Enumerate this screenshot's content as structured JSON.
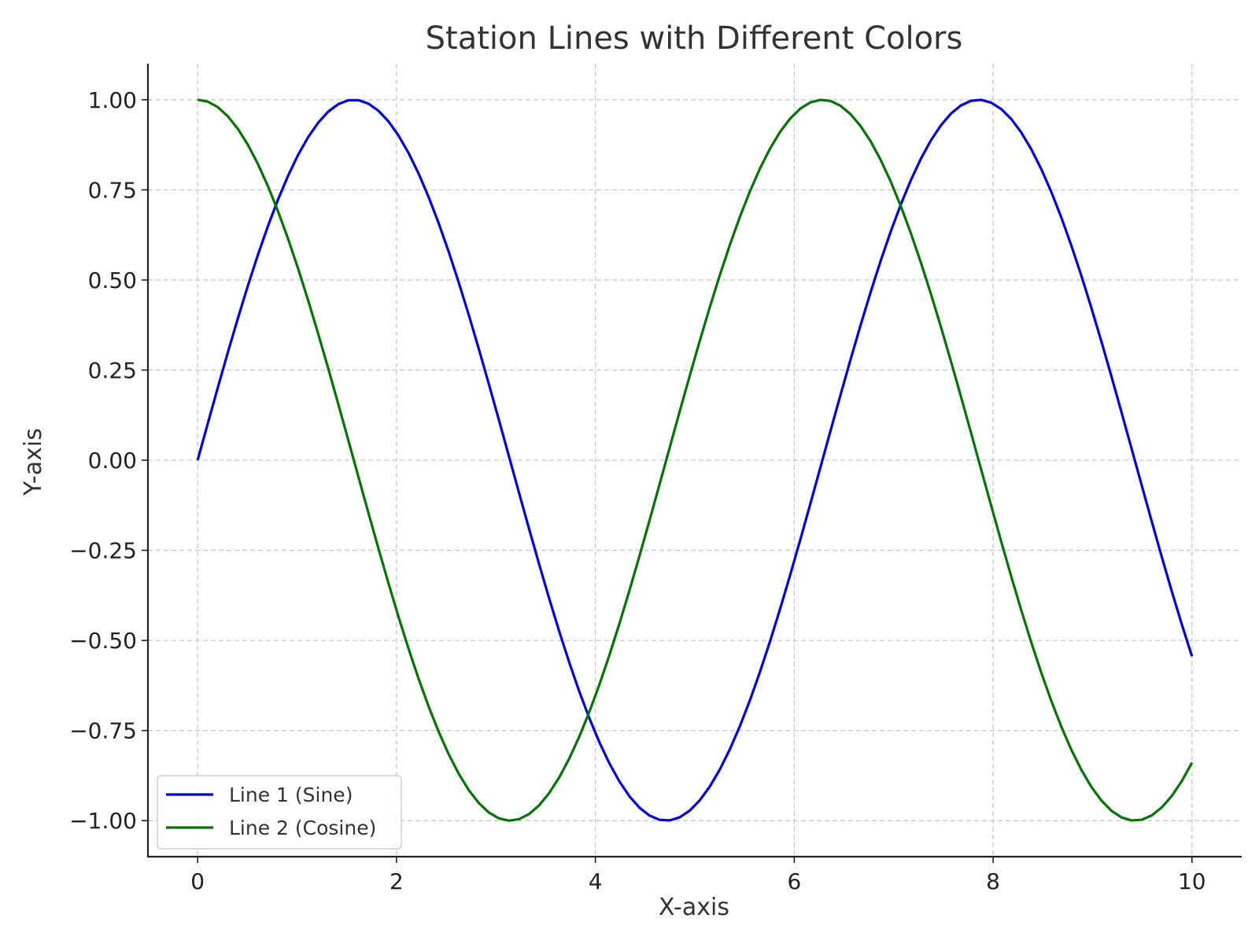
{
  "chart_data": {
    "type": "line",
    "title": "Station Lines with Different Colors",
    "xlabel": "X-axis",
    "ylabel": "Y-axis",
    "xlim": [
      -0.5,
      10.5
    ],
    "ylim": [
      -1.1,
      1.1
    ],
    "xticks": [
      0,
      2,
      4,
      6,
      8,
      10
    ],
    "xtick_labels": [
      "0",
      "2",
      "4",
      "6",
      "8",
      "10"
    ],
    "yticks": [
      1.0,
      0.75,
      0.5,
      0.25,
      0.0,
      -0.25,
      -0.5,
      -0.75,
      -1.0
    ],
    "ytick_labels": [
      "1.00",
      "0.75",
      "0.50",
      "0.25",
      "0.00",
      "−0.25",
      "−0.50",
      "−0.75",
      "−1.00"
    ],
    "grid": true,
    "legend_position": "lower-left",
    "x_range": [
      0,
      10
    ],
    "series": [
      {
        "name": "Line 1 (Sine)",
        "color": "#0000ee",
        "function": "sin(x)",
        "x": [
          0,
          1,
          2,
          3,
          4,
          5,
          6,
          7,
          8,
          9,
          10
        ],
        "y": [
          0.0,
          0.84,
          0.91,
          0.14,
          -0.76,
          -0.96,
          -0.28,
          0.66,
          0.99,
          0.41,
          -0.54
        ]
      },
      {
        "name": "Line 2 (Cosine)",
        "color": "#007700",
        "function": "cos(x)",
        "x": [
          0,
          1,
          2,
          3,
          4,
          5,
          6,
          7,
          8,
          9,
          10
        ],
        "y": [
          1.0,
          0.54,
          -0.42,
          -0.99,
          -0.65,
          0.28,
          0.96,
          0.75,
          -0.15,
          -0.91,
          -0.84
        ]
      }
    ]
  }
}
